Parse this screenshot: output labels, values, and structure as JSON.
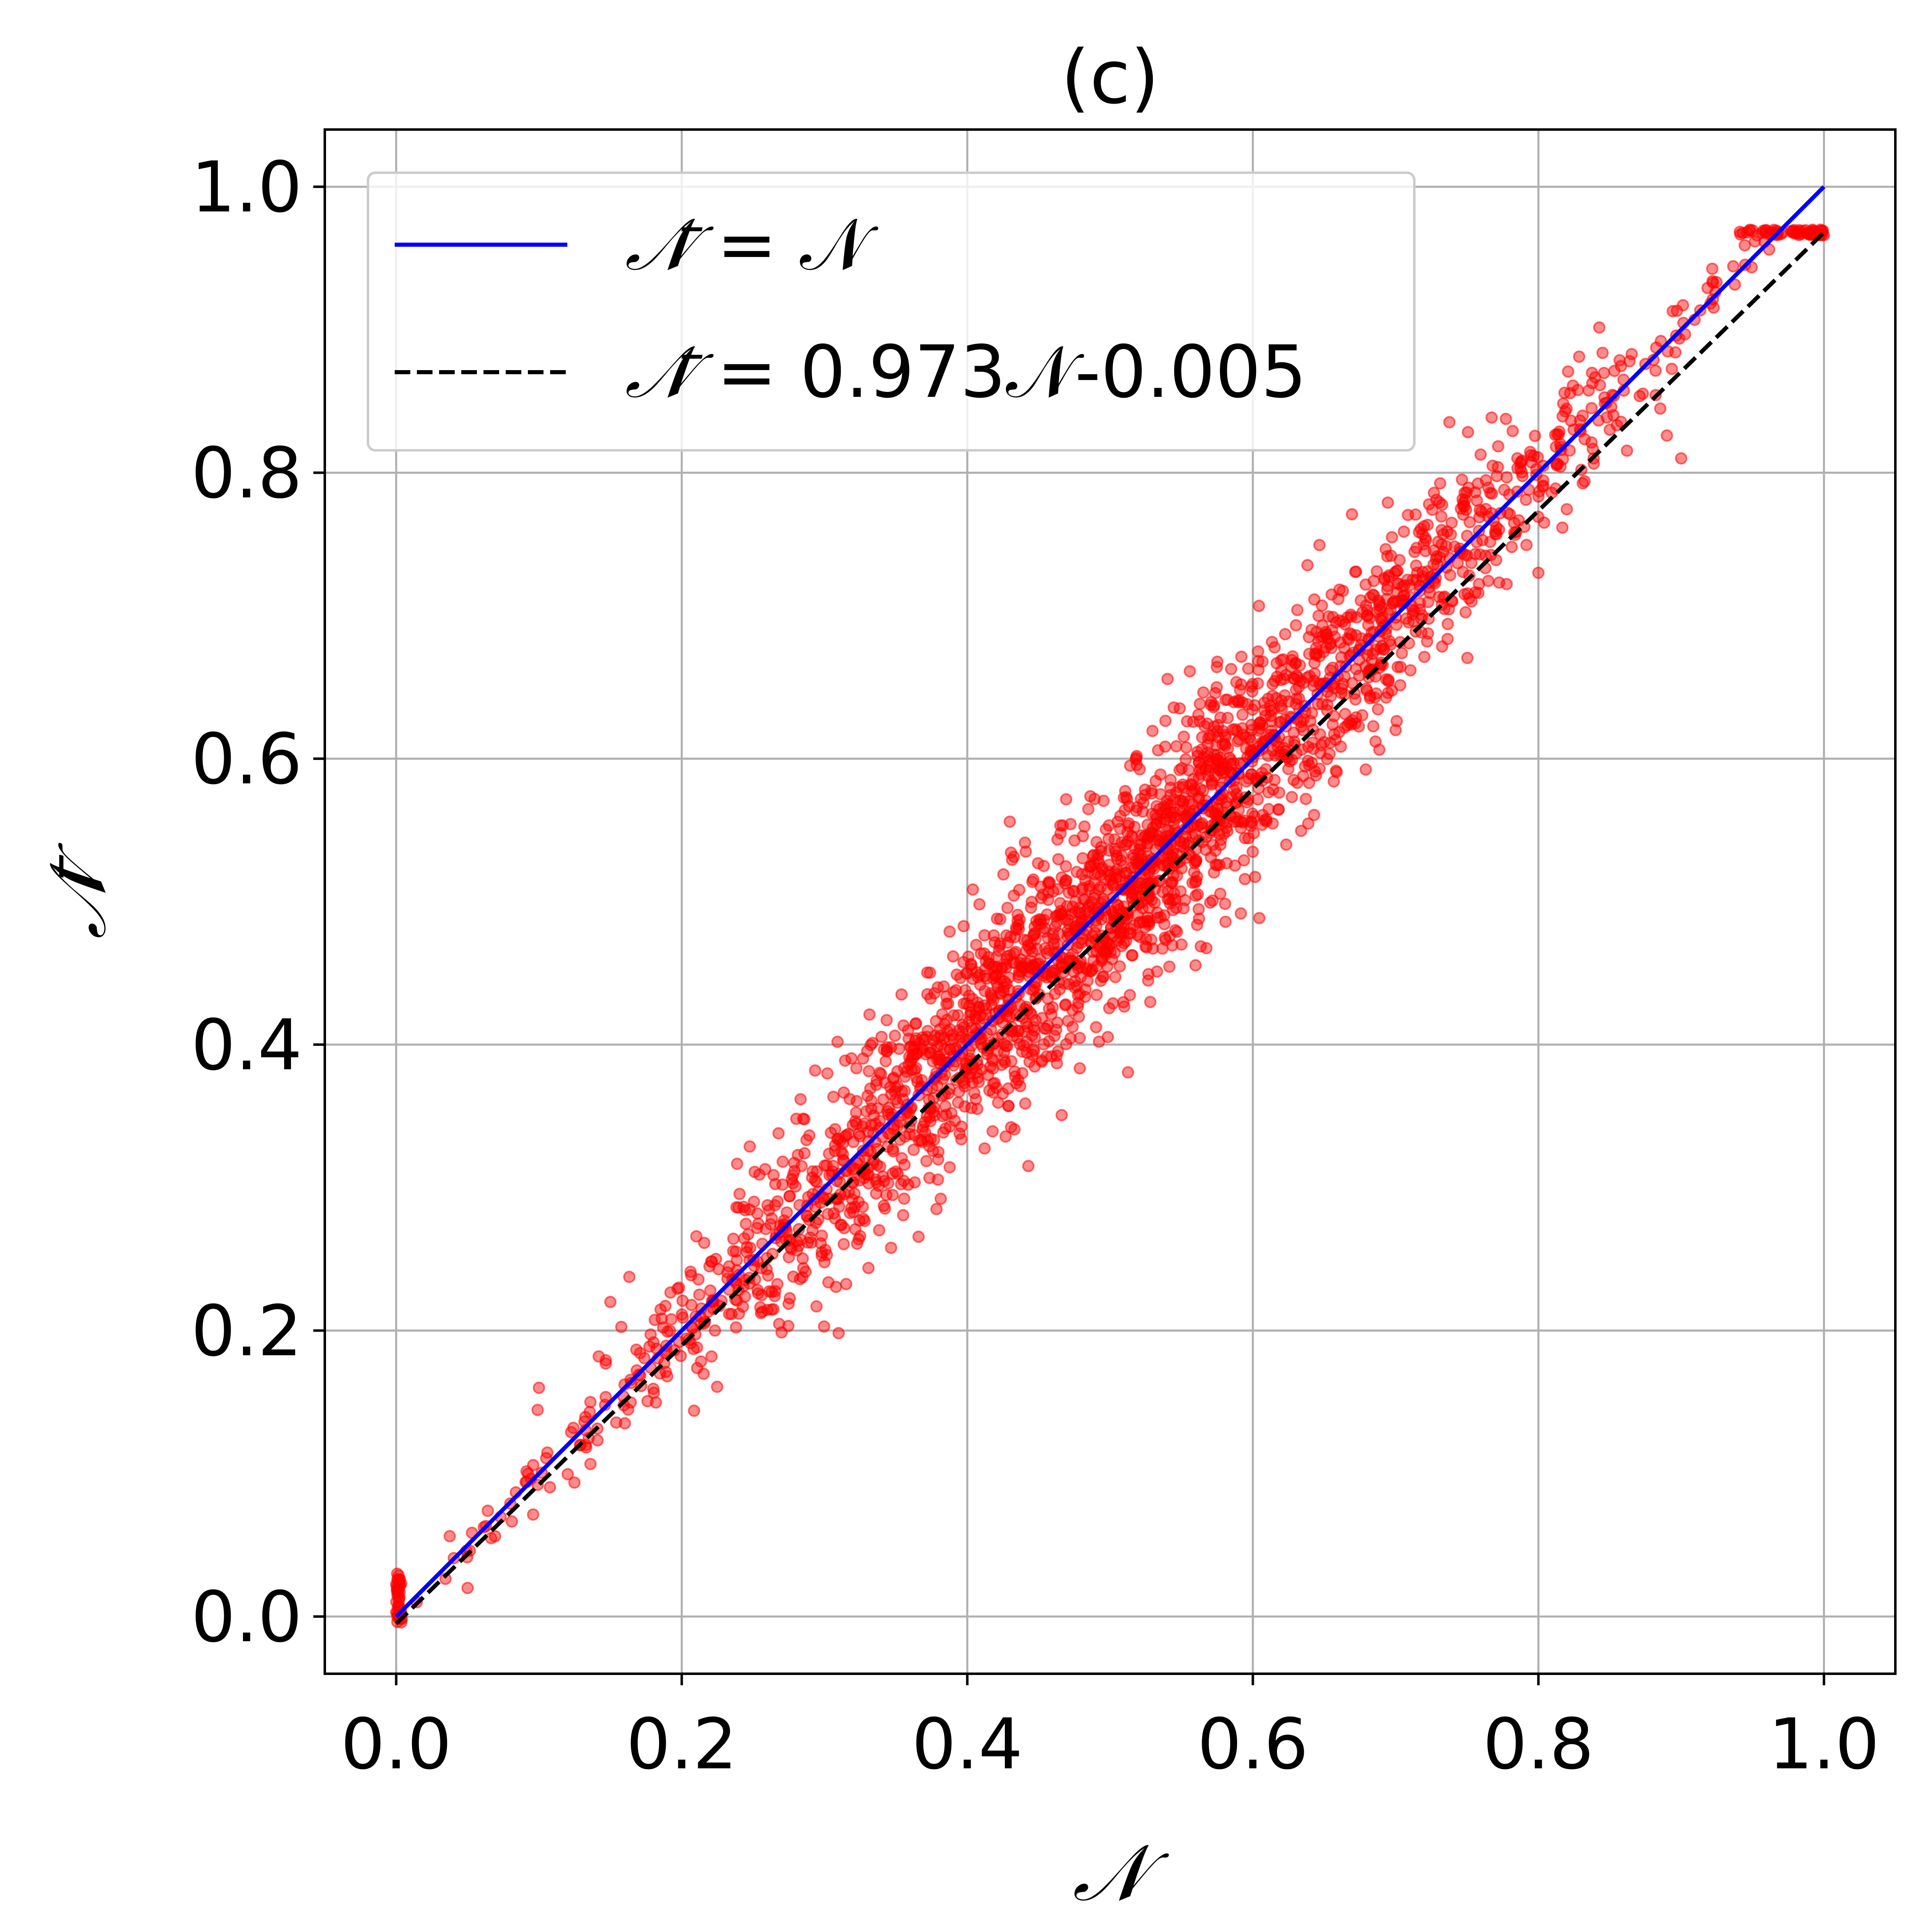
{
  "chart_data": {
    "type": "scatter",
    "title": "(c)",
    "xlabel": "𝒩",
    "ylabel": "𝒩̄",
    "xlim": [
      -0.05,
      1.05
    ],
    "ylim": [
      -0.04,
      1.04
    ],
    "x_ticks": [
      "0.0",
      "0.2",
      "0.4",
      "0.6",
      "0.8",
      "1.0"
    ],
    "y_ticks": [
      "0.0",
      "0.2",
      "0.4",
      "0.6",
      "0.8",
      "1.0"
    ],
    "grid": true,
    "legend_position": "top-left",
    "colors": {
      "scatter": "#ff0000",
      "identity": "#0000ff",
      "fit": "#000000"
    },
    "scatter": {
      "name": "samples",
      "approx_trend": {
        "slope": 1.0,
        "intercept": 0.0,
        "spread_max": 0.065
      },
      "saturation_value": 0.968,
      "saturation_x_range": [
        0.94,
        1.0
      ],
      "outliers": [
        [
          0.89,
          0.826
        ],
        [
          0.85,
          0.83
        ],
        [
          0.9,
          0.81
        ],
        [
          0.8,
          0.73
        ],
        [
          0.7,
          0.62
        ],
        [
          0.68,
          0.7
        ],
        [
          0.55,
          0.47
        ],
        [
          0.1,
          0.16
        ],
        [
          0.05,
          0.02
        ],
        [
          0.15,
          0.22
        ]
      ]
    },
    "lines": [
      {
        "name": "identity",
        "label_prefix": "𝒩̄",
        "label_eq": "= 𝒩",
        "slope": 1.0,
        "intercept": 0.0,
        "style": "solid",
        "x_range": [
          0.0,
          1.0
        ]
      },
      {
        "name": "fit",
        "label_prefix": "𝒩̄",
        "label_eq": "= 0.973𝒩-0.005",
        "slope": 0.973,
        "intercept": -0.005,
        "style": "dashed",
        "x_range": [
          0.0,
          1.0
        ]
      }
    ]
  }
}
